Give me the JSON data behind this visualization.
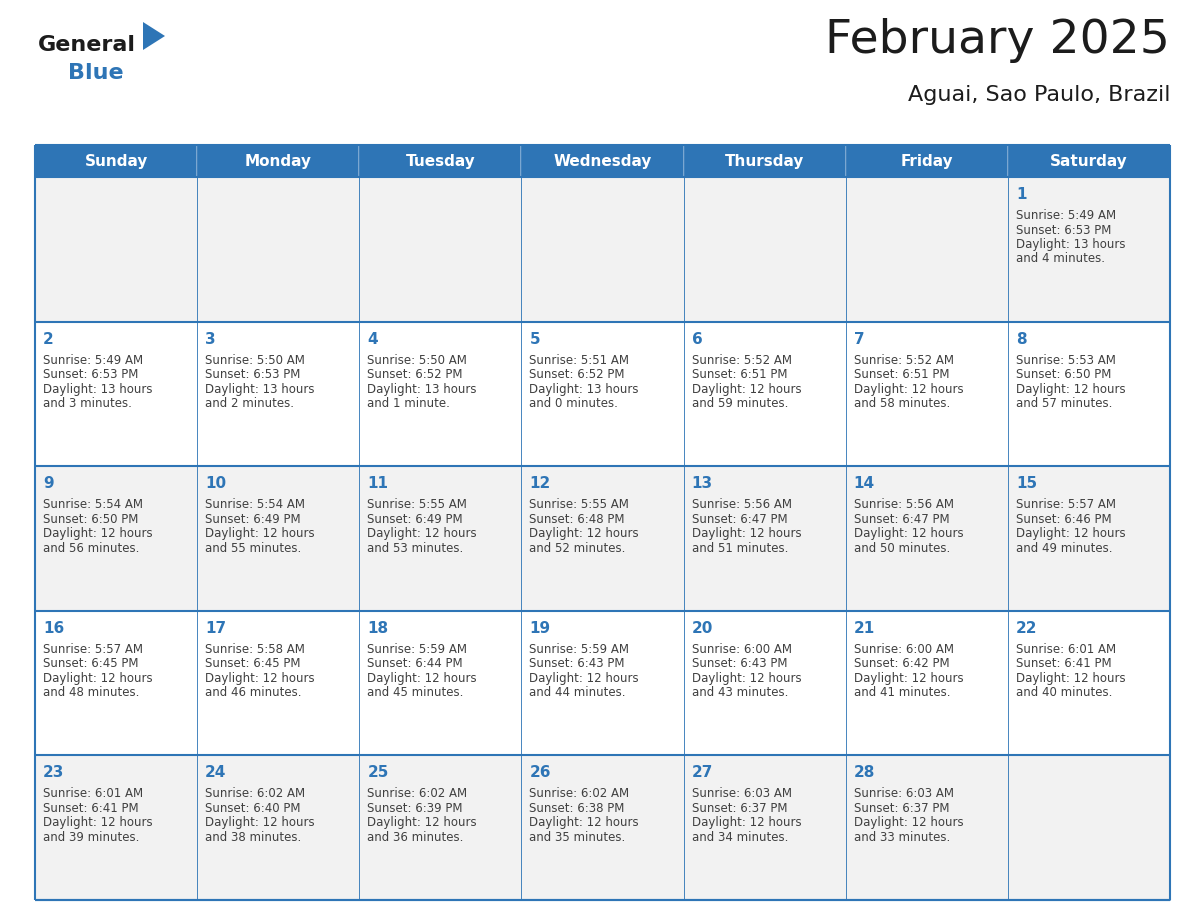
{
  "title": "February 2025",
  "subtitle": "Aguai, Sao Paulo, Brazil",
  "header_bg": "#2E75B6",
  "header_text_color": "#FFFFFF",
  "cell_bg_week1": "#F2F2F2",
  "cell_bg_week2": "#FFFFFF",
  "cell_bg_week3": "#F2F2F2",
  "cell_bg_week4": "#FFFFFF",
  "cell_bg_week5": "#F2F2F2",
  "day_number_color": "#2E75B6",
  "info_text_color": "#404040",
  "border_color": "#2E75B6",
  "days_of_week": [
    "Sunday",
    "Monday",
    "Tuesday",
    "Wednesday",
    "Thursday",
    "Friday",
    "Saturday"
  ],
  "weeks": [
    [
      {
        "day": null,
        "sunrise": null,
        "sunset": null,
        "daylight": null
      },
      {
        "day": null,
        "sunrise": null,
        "sunset": null,
        "daylight": null
      },
      {
        "day": null,
        "sunrise": null,
        "sunset": null,
        "daylight": null
      },
      {
        "day": null,
        "sunrise": null,
        "sunset": null,
        "daylight": null
      },
      {
        "day": null,
        "sunrise": null,
        "sunset": null,
        "daylight": null
      },
      {
        "day": null,
        "sunrise": null,
        "sunset": null,
        "daylight": null
      },
      {
        "day": 1,
        "sunrise": "5:49 AM",
        "sunset": "6:53 PM",
        "daylight": "13 hours and 4 minutes."
      }
    ],
    [
      {
        "day": 2,
        "sunrise": "5:49 AM",
        "sunset": "6:53 PM",
        "daylight": "13 hours and 3 minutes."
      },
      {
        "day": 3,
        "sunrise": "5:50 AM",
        "sunset": "6:53 PM",
        "daylight": "13 hours and 2 minutes."
      },
      {
        "day": 4,
        "sunrise": "5:50 AM",
        "sunset": "6:52 PM",
        "daylight": "13 hours and 1 minute."
      },
      {
        "day": 5,
        "sunrise": "5:51 AM",
        "sunset": "6:52 PM",
        "daylight": "13 hours and 0 minutes."
      },
      {
        "day": 6,
        "sunrise": "5:52 AM",
        "sunset": "6:51 PM",
        "daylight": "12 hours and 59 minutes."
      },
      {
        "day": 7,
        "sunrise": "5:52 AM",
        "sunset": "6:51 PM",
        "daylight": "12 hours and 58 minutes."
      },
      {
        "day": 8,
        "sunrise": "5:53 AM",
        "sunset": "6:50 PM",
        "daylight": "12 hours and 57 minutes."
      }
    ],
    [
      {
        "day": 9,
        "sunrise": "5:54 AM",
        "sunset": "6:50 PM",
        "daylight": "12 hours and 56 minutes."
      },
      {
        "day": 10,
        "sunrise": "5:54 AM",
        "sunset": "6:49 PM",
        "daylight": "12 hours and 55 minutes."
      },
      {
        "day": 11,
        "sunrise": "5:55 AM",
        "sunset": "6:49 PM",
        "daylight": "12 hours and 53 minutes."
      },
      {
        "day": 12,
        "sunrise": "5:55 AM",
        "sunset": "6:48 PM",
        "daylight": "12 hours and 52 minutes."
      },
      {
        "day": 13,
        "sunrise": "5:56 AM",
        "sunset": "6:47 PM",
        "daylight": "12 hours and 51 minutes."
      },
      {
        "day": 14,
        "sunrise": "5:56 AM",
        "sunset": "6:47 PM",
        "daylight": "12 hours and 50 minutes."
      },
      {
        "day": 15,
        "sunrise": "5:57 AM",
        "sunset": "6:46 PM",
        "daylight": "12 hours and 49 minutes."
      }
    ],
    [
      {
        "day": 16,
        "sunrise": "5:57 AM",
        "sunset": "6:45 PM",
        "daylight": "12 hours and 48 minutes."
      },
      {
        "day": 17,
        "sunrise": "5:58 AM",
        "sunset": "6:45 PM",
        "daylight": "12 hours and 46 minutes."
      },
      {
        "day": 18,
        "sunrise": "5:59 AM",
        "sunset": "6:44 PM",
        "daylight": "12 hours and 45 minutes."
      },
      {
        "day": 19,
        "sunrise": "5:59 AM",
        "sunset": "6:43 PM",
        "daylight": "12 hours and 44 minutes."
      },
      {
        "day": 20,
        "sunrise": "6:00 AM",
        "sunset": "6:43 PM",
        "daylight": "12 hours and 43 minutes."
      },
      {
        "day": 21,
        "sunrise": "6:00 AM",
        "sunset": "6:42 PM",
        "daylight": "12 hours and 41 minutes."
      },
      {
        "day": 22,
        "sunrise": "6:01 AM",
        "sunset": "6:41 PM",
        "daylight": "12 hours and 40 minutes."
      }
    ],
    [
      {
        "day": 23,
        "sunrise": "6:01 AM",
        "sunset": "6:41 PM",
        "daylight": "12 hours and 39 minutes."
      },
      {
        "day": 24,
        "sunrise": "6:02 AM",
        "sunset": "6:40 PM",
        "daylight": "12 hours and 38 minutes."
      },
      {
        "day": 25,
        "sunrise": "6:02 AM",
        "sunset": "6:39 PM",
        "daylight": "12 hours and 36 minutes."
      },
      {
        "day": 26,
        "sunrise": "6:02 AM",
        "sunset": "6:38 PM",
        "daylight": "12 hours and 35 minutes."
      },
      {
        "day": 27,
        "sunrise": "6:03 AM",
        "sunset": "6:37 PM",
        "daylight": "12 hours and 34 minutes."
      },
      {
        "day": 28,
        "sunrise": "6:03 AM",
        "sunset": "6:37 PM",
        "daylight": "12 hours and 33 minutes."
      },
      {
        "day": null,
        "sunrise": null,
        "sunset": null,
        "daylight": null
      }
    ]
  ],
  "figsize": [
    11.88,
    9.18
  ],
  "dpi": 100
}
